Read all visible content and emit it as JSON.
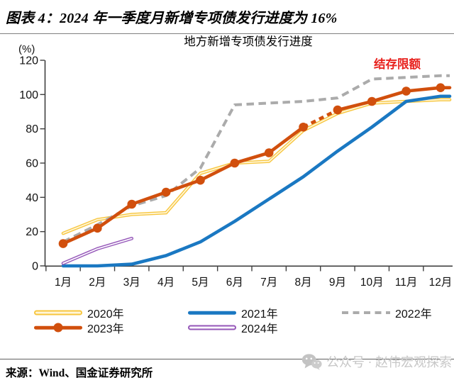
{
  "header": {
    "title": "图表 4：2024 年一季度月新增专项债发行进度为 16%"
  },
  "chart_data": {
    "type": "line",
    "title": "地方新增专项债发行进度",
    "ylabel": "(%)",
    "xlabel": "",
    "ylim": [
      0,
      120
    ],
    "yticks": [
      0,
      20,
      40,
      60,
      80,
      100,
      120
    ],
    "grid": false,
    "legend_position": "bottom",
    "categories": [
      "1月",
      "2月",
      "3月",
      "4月",
      "5月",
      "6月",
      "7月",
      "8月",
      "9月",
      "10月",
      "11月",
      "12月"
    ],
    "annotation": {
      "text": "结存限额",
      "color": "#E8211D"
    },
    "series": [
      {
        "id": "2020",
        "name": "2020年",
        "style": "tube",
        "color": "#F7C63F",
        "inner_color": "#FFF6D9",
        "values": [
          19,
          27,
          30,
          31,
          54,
          60,
          61,
          79,
          89,
          95,
          96,
          97
        ]
      },
      {
        "id": "2021",
        "name": "2021年",
        "style": "solid",
        "color": "#1A78C2",
        "values": [
          0,
          0,
          1,
          6,
          14,
          26,
          39,
          52,
          67,
          81,
          96,
          99
        ]
      },
      {
        "id": "2022",
        "name": "2022年",
        "style": "dashed",
        "color": "#ABABAB",
        "values": [
          14,
          24,
          35,
          41,
          57,
          94,
          95,
          96,
          98,
          109,
          110,
          111
        ]
      },
      {
        "id": "2023",
        "name": "2023年",
        "style": "solid-marker",
        "color": "#D14F0D",
        "dashed_segment": [
          7,
          8
        ],
        "values": [
          13,
          22,
          36,
          43,
          50,
          60,
          66,
          81,
          91,
          96,
          102,
          104
        ]
      },
      {
        "id": "2024",
        "name": "2024年",
        "style": "tube",
        "color": "#9557B8",
        "inner_color": "#FBF8FE",
        "values": [
          1.5,
          10,
          16
        ]
      }
    ]
  },
  "footer": {
    "source": "来源：Wind、国金证券研究所",
    "watermark": "公众号 · 赵伟宏观探索"
  }
}
